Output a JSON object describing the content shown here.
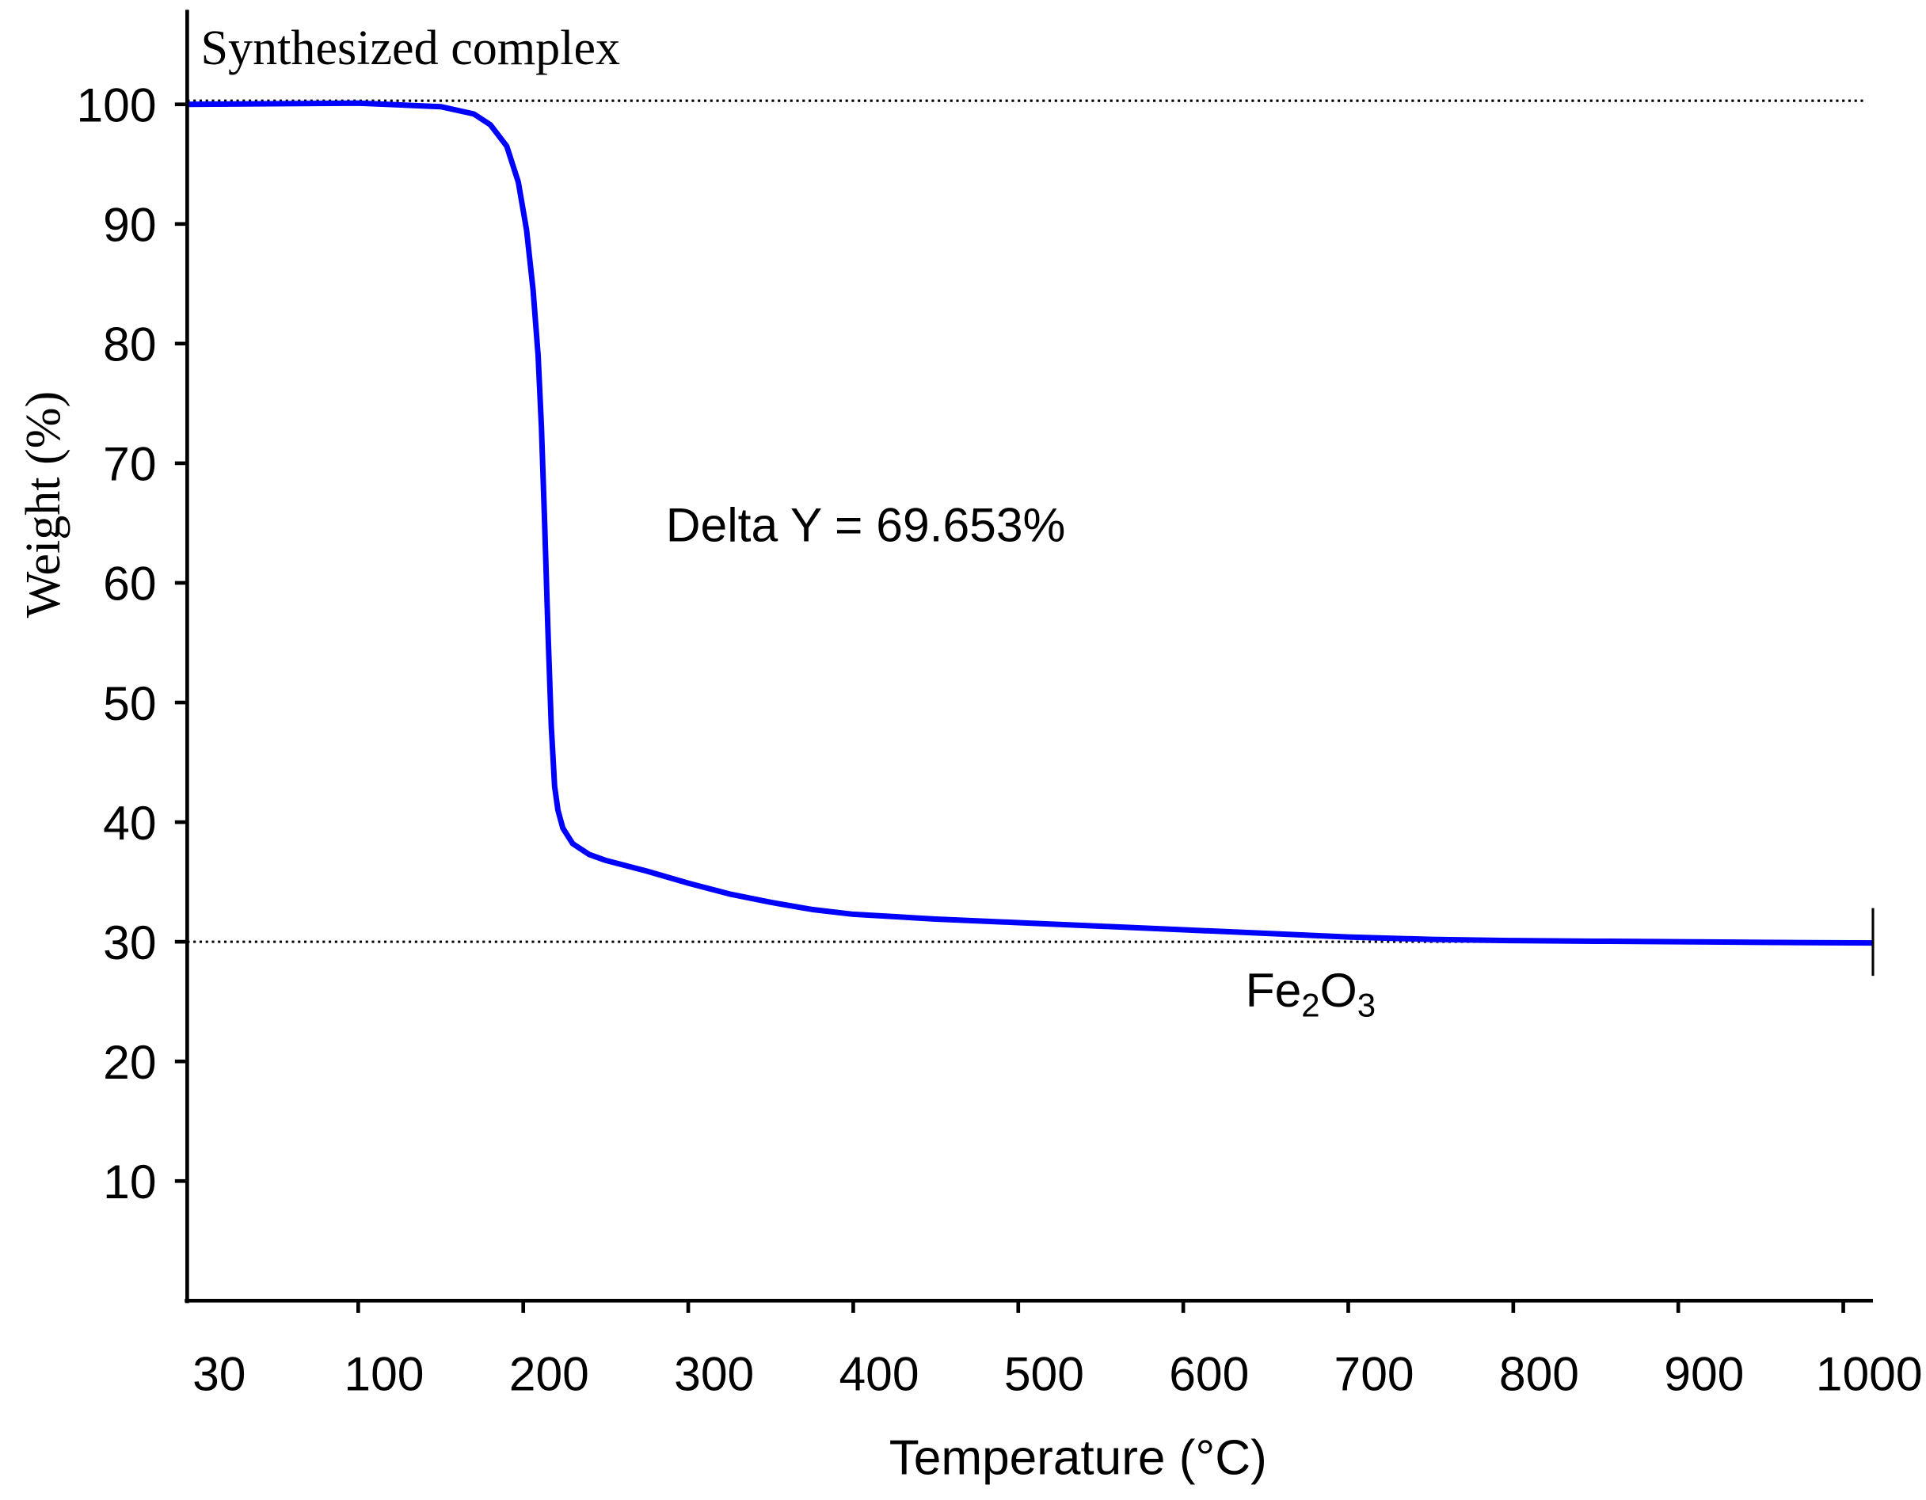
{
  "chart_data": {
    "type": "line",
    "title": "Synthesized complex",
    "xlabel": "Temperature (°C)",
    "ylabel": "Weight (%)",
    "xlim": [
      30,
      1018
    ],
    "ylim": [
      0,
      108
    ],
    "x_ticks": [
      30,
      100,
      200,
      300,
      400,
      500,
      600,
      700,
      800,
      900,
      1000
    ],
    "x_tick_labels": [
      "30",
      "100",
      "200",
      "300",
      "400",
      "500",
      "600",
      "700",
      "800",
      "900",
      "1000"
    ],
    "y_ticks": [
      10,
      20,
      30,
      40,
      50,
      60,
      70,
      80,
      90,
      100
    ],
    "y_tick_labels": [
      "10",
      "20",
      "30",
      "40",
      "50",
      "60",
      "70",
      "80",
      "90",
      "100"
    ],
    "grid": false,
    "series": [
      {
        "color": "#0000ff",
        "x": [
          30,
          100,
          150,
          170,
          180,
          190,
          197,
          202,
          206,
          209,
          211,
          213,
          215,
          217,
          219,
          221,
          224,
          230,
          240,
          250,
          275,
          300,
          325,
          350,
          375,
          400,
          450,
          500,
          550,
          600,
          650,
          700,
          750,
          800,
          850,
          900,
          950,
          1018
        ],
        "y": [
          100.0,
          100.1,
          99.8,
          99.2,
          98.3,
          96.5,
          93.5,
          89.5,
          84.5,
          79,
          73,
          65,
          56,
          48,
          43,
          41,
          39.5,
          38.2,
          37.3,
          36.8,
          35.9,
          34.9,
          34.0,
          33.3,
          32.7,
          32.3,
          31.9,
          31.6,
          31.3,
          31.0,
          30.7,
          30.4,
          30.2,
          30.1,
          30.05,
          30.0,
          29.95,
          29.9
        ]
      }
    ],
    "reference_lines": [
      {
        "axis": "y",
        "value": 100.3,
        "style": "dotted",
        "color": "#000000"
      },
      {
        "axis": "y",
        "value": 30,
        "style": "dotted",
        "color": "#000000"
      }
    ],
    "annotations": [
      {
        "text": "Delta Y = 69.653%",
        "x": 305,
        "y": 67
      },
      {
        "text_main": "Fe",
        "sub1": "2",
        "text_mid": "O",
        "sub2": "3",
        "x": 675,
        "y": 25
      }
    ]
  }
}
